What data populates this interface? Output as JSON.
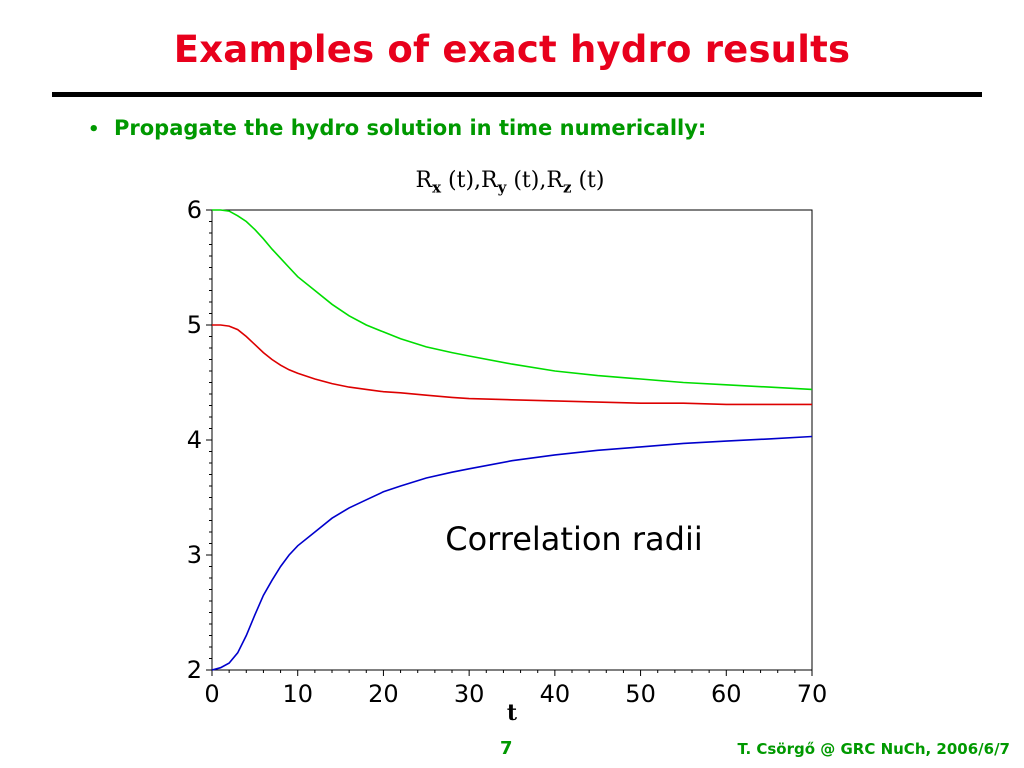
{
  "slide": {
    "title": "Examples of exact hydro results",
    "bullet": "Propagate the hydro solution in time numerically:",
    "page_number": "7",
    "credit": "T. Csörgő @ GRC NuCh, 2006/6/7"
  },
  "chart_data": {
    "type": "line",
    "title": "Rx (t),Ry (t),Rz (t)",
    "title_parts": {
      "r": "R",
      "x": "x",
      "y": "y",
      "z": "z",
      "t": "(t)",
      "sep": ","
    },
    "xlabel": "t",
    "ylabel": "",
    "xlim": [
      0,
      70
    ],
    "ylim": [
      2,
      6
    ],
    "xticks": [
      0,
      10,
      20,
      30,
      40,
      50,
      60,
      70
    ],
    "yticks": [
      2,
      3,
      4,
      5,
      6
    ],
    "grid": false,
    "annotation": "Correlation radii",
    "x": [
      0,
      1,
      2,
      3,
      4,
      5,
      6,
      7,
      8,
      9,
      10,
      12,
      14,
      16,
      18,
      20,
      22,
      25,
      28,
      30,
      35,
      40,
      45,
      50,
      55,
      60,
      65,
      70
    ],
    "series": [
      {
        "color": "#00dd00",
        "values": [
          6.0,
          6.0,
          5.99,
          5.95,
          5.9,
          5.83,
          5.75,
          5.66,
          5.58,
          5.5,
          5.42,
          5.3,
          5.18,
          5.08,
          5.0,
          4.94,
          4.88,
          4.81,
          4.76,
          4.73,
          4.66,
          4.6,
          4.56,
          4.53,
          4.5,
          4.48,
          4.46,
          4.44
        ]
      },
      {
        "color": "#dd0000",
        "values": [
          5.0,
          5.0,
          4.99,
          4.96,
          4.9,
          4.83,
          4.76,
          4.7,
          4.65,
          4.61,
          4.58,
          4.53,
          4.49,
          4.46,
          4.44,
          4.42,
          4.41,
          4.39,
          4.37,
          4.36,
          4.35,
          4.34,
          4.33,
          4.32,
          4.32,
          4.31,
          4.31,
          4.31
        ]
      },
      {
        "color": "#0000cc",
        "values": [
          2.0,
          2.02,
          2.06,
          2.15,
          2.3,
          2.48,
          2.65,
          2.78,
          2.9,
          3.0,
          3.08,
          3.2,
          3.32,
          3.41,
          3.48,
          3.55,
          3.6,
          3.67,
          3.72,
          3.75,
          3.82,
          3.87,
          3.91,
          3.94,
          3.97,
          3.99,
          4.01,
          4.03
        ]
      }
    ]
  }
}
